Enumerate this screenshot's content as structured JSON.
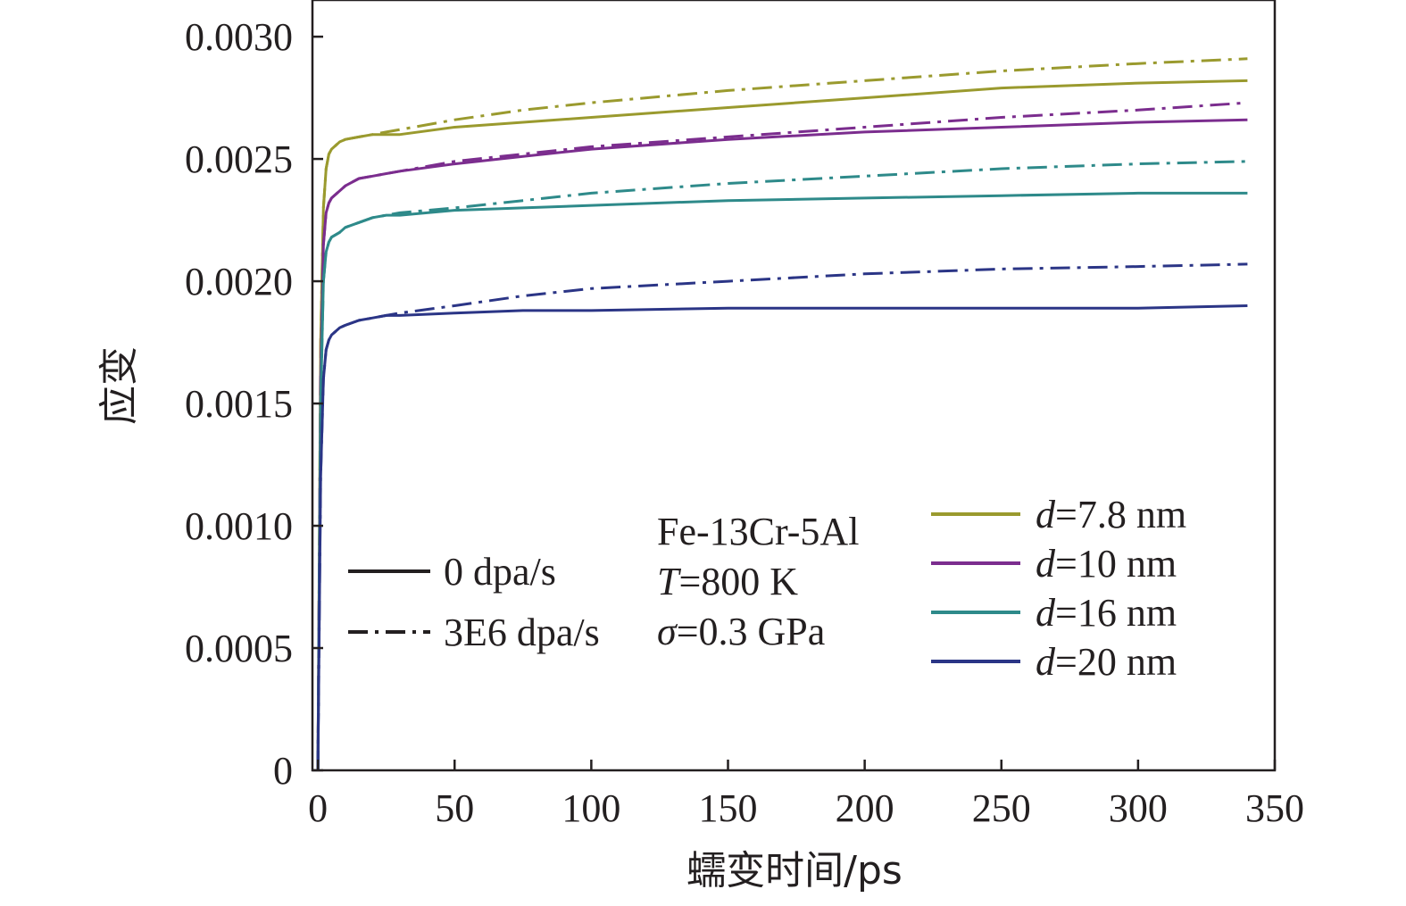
{
  "chart_data": {
    "type": "line",
    "xlabel": "蠕变时间/ps",
    "ylabel": "应变",
    "xlim": [
      -2,
      350
    ],
    "ylim": [
      0,
      0.00315
    ],
    "xticks": [
      0,
      50,
      100,
      150,
      200,
      250,
      300,
      350
    ],
    "yticks": [
      0,
      0.0005,
      0.001,
      0.0015,
      0.002,
      0.0025,
      0.003
    ],
    "xtick_labels": [
      "0",
      "50",
      "100",
      "150",
      "200",
      "250",
      "300",
      "350"
    ],
    "ytick_labels": [
      "0",
      "0.0005",
      "0.0010",
      "0.0015",
      "0.0020",
      "0.0025",
      "0.0030"
    ],
    "grid": false,
    "x": [
      0,
      1,
      2,
      3,
      4,
      5,
      8,
      10,
      15,
      20,
      25,
      30,
      50,
      75,
      100,
      150,
      200,
      250,
      300,
      340
    ],
    "series": [
      {
        "name": "d=7.8 nm, 0 dpa/s",
        "color": "#9a9a2e",
        "style": "solid",
        "values": [
          0,
          0.00175,
          0.0023,
          0.00246,
          0.00252,
          0.00254,
          0.00257,
          0.00258,
          0.00259,
          0.0026,
          0.0026,
          0.0026,
          0.00263,
          0.00265,
          0.00267,
          0.00271,
          0.00275,
          0.00279,
          0.00281,
          0.00282
        ]
      },
      {
        "name": "d=7.8 nm, 3E6 dpa/s",
        "color": "#9a9a2e",
        "style": "dashdot",
        "values": [
          0,
          0.00175,
          0.0023,
          0.00246,
          0.00252,
          0.00254,
          0.00257,
          0.00258,
          0.00259,
          0.0026,
          0.00261,
          0.00262,
          0.00266,
          0.0027,
          0.00273,
          0.00278,
          0.00282,
          0.00286,
          0.00289,
          0.00291
        ]
      },
      {
        "name": "d=10 nm, 0 dpa/s",
        "color": "#7b2d8e",
        "style": "solid",
        "values": [
          0,
          0.0016,
          0.00215,
          0.00228,
          0.00232,
          0.00234,
          0.00237,
          0.00239,
          0.00242,
          0.00243,
          0.00244,
          0.00245,
          0.00248,
          0.00251,
          0.00254,
          0.00258,
          0.00261,
          0.00263,
          0.00265,
          0.00266
        ]
      },
      {
        "name": "d=10 nm, 3E6 dpa/s",
        "color": "#7b2d8e",
        "style": "dashdot",
        "values": [
          0,
          0.0016,
          0.00215,
          0.00228,
          0.00232,
          0.00234,
          0.00237,
          0.00239,
          0.00242,
          0.00243,
          0.00244,
          0.00245,
          0.00249,
          0.00252,
          0.00255,
          0.00259,
          0.00263,
          0.00267,
          0.0027,
          0.00273
        ]
      },
      {
        "name": "d=16 nm, 0 dpa/s",
        "color": "#2e8a8a",
        "style": "solid",
        "values": [
          0,
          0.0015,
          0.002,
          0.00212,
          0.00216,
          0.00218,
          0.0022,
          0.00222,
          0.00224,
          0.00226,
          0.00227,
          0.00227,
          0.00229,
          0.0023,
          0.00231,
          0.00233,
          0.00234,
          0.00235,
          0.00236,
          0.00236
        ]
      },
      {
        "name": "d=16 nm, 3E6 dpa/s",
        "color": "#2e8a8a",
        "style": "dashdot",
        "values": [
          0,
          0.0015,
          0.002,
          0.00212,
          0.00216,
          0.00218,
          0.0022,
          0.00222,
          0.00224,
          0.00226,
          0.00227,
          0.00228,
          0.0023,
          0.00233,
          0.00236,
          0.0024,
          0.00243,
          0.00246,
          0.00248,
          0.00249
        ]
      },
      {
        "name": "d=20 nm, 0 dpa/s",
        "color": "#2b3586",
        "style": "solid",
        "values": [
          0,
          0.0012,
          0.0016,
          0.00172,
          0.00176,
          0.00178,
          0.00181,
          0.00182,
          0.00184,
          0.00185,
          0.00186,
          0.00186,
          0.00187,
          0.00188,
          0.00188,
          0.00189,
          0.00189,
          0.00189,
          0.00189,
          0.0019
        ]
      },
      {
        "name": "d=20 nm, 3E6 dpa/s",
        "color": "#2b3586",
        "style": "dashdot",
        "values": [
          0,
          0.0012,
          0.0016,
          0.00172,
          0.00176,
          0.00178,
          0.00181,
          0.00182,
          0.00184,
          0.00185,
          0.00186,
          0.00187,
          0.0019,
          0.00194,
          0.00197,
          0.002,
          0.00203,
          0.00205,
          0.00206,
          0.00207
        ]
      }
    ],
    "legend_style": [
      {
        "label": "0 dpa/s",
        "style": "solid"
      },
      {
        "label": "3E6 dpa/s",
        "style": "dashdot"
      }
    ],
    "legend_conditions": [
      "Fe-13Cr-5Al",
      "T=800 K",
      "σ=0.3 GPa"
    ],
    "legend_sizes": [
      {
        "var": "d",
        "rest": "=7.8 nm",
        "color": "#9a9a2e"
      },
      {
        "var": "d",
        "rest": "=10 nm",
        "color": "#7b2d8e"
      },
      {
        "var": "d",
        "rest": "=16 nm",
        "color": "#2e8a8a"
      },
      {
        "var": "d",
        "rest": "=20 nm",
        "color": "#2b3586"
      }
    ]
  }
}
